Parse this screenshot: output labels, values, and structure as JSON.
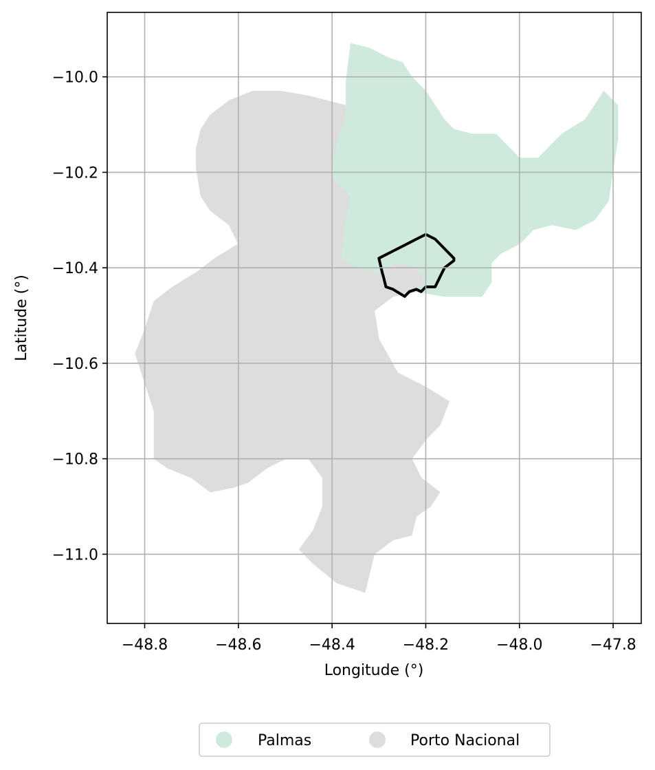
{
  "map": {
    "xlabel": "Longitude (°)",
    "ylabel": "Latitude (°)",
    "xlim": [
      -48.88,
      -47.74
    ],
    "ylim": [
      -11.145,
      -9.865
    ],
    "x_ticks": [
      -48.8,
      -48.6,
      -48.4,
      -48.2,
      -48.0,
      -47.8
    ],
    "x_tick_labels": [
      "−48.8",
      "−48.6",
      "−48.4",
      "−48.2",
      "−48.0",
      "−47.8"
    ],
    "y_ticks": [
      -10.0,
      -10.2,
      -10.4,
      -10.6,
      -10.8,
      -11.0
    ],
    "y_tick_labels": [
      "−10.0",
      "−10.2",
      "−10.4",
      "−10.6",
      "−10.8",
      "−11.0"
    ],
    "grid": true,
    "legend_position": "below plot, centered",
    "colors": {
      "palmas": "#cfeadd",
      "porto_nacional": "#dddddd",
      "outline": "#000000"
    },
    "regions": [
      {
        "name": "Porto Nacional",
        "color": "#dddddd",
        "coords": [
          [
            -48.37,
            -10.06
          ],
          [
            -48.45,
            -10.04
          ],
          [
            -48.51,
            -10.03
          ],
          [
            -48.57,
            -10.03
          ],
          [
            -48.62,
            -10.05
          ],
          [
            -48.66,
            -10.08
          ],
          [
            -48.68,
            -10.11
          ],
          [
            -48.69,
            -10.15
          ],
          [
            -48.69,
            -10.19
          ],
          [
            -48.68,
            -10.25
          ],
          [
            -48.66,
            -10.28
          ],
          [
            -48.62,
            -10.31
          ],
          [
            -48.6,
            -10.35
          ],
          [
            -48.65,
            -10.38
          ],
          [
            -48.69,
            -10.41
          ],
          [
            -48.74,
            -10.44
          ],
          [
            -48.78,
            -10.47
          ],
          [
            -48.8,
            -10.53
          ],
          [
            -48.82,
            -10.58
          ],
          [
            -48.8,
            -10.64
          ],
          [
            -48.78,
            -10.7
          ],
          [
            -48.78,
            -10.76
          ],
          [
            -48.78,
            -10.8
          ],
          [
            -48.75,
            -10.82
          ],
          [
            -48.7,
            -10.84
          ],
          [
            -48.66,
            -10.87
          ],
          [
            -48.61,
            -10.86
          ],
          [
            -48.58,
            -10.85
          ],
          [
            -48.54,
            -10.82
          ],
          [
            -48.5,
            -10.8
          ],
          [
            -48.45,
            -10.8
          ],
          [
            -48.42,
            -10.84
          ],
          [
            -48.42,
            -10.9
          ],
          [
            -48.44,
            -10.95
          ],
          [
            -48.47,
            -10.99
          ],
          [
            -48.44,
            -11.02
          ],
          [
            -48.39,
            -11.06
          ],
          [
            -48.33,
            -11.08
          ],
          [
            -48.31,
            -11.0
          ],
          [
            -48.27,
            -10.97
          ],
          [
            -48.23,
            -10.96
          ],
          [
            -48.22,
            -10.92
          ],
          [
            -48.19,
            -10.9
          ],
          [
            -48.17,
            -10.87
          ],
          [
            -48.21,
            -10.84
          ],
          [
            -48.23,
            -10.8
          ],
          [
            -48.2,
            -10.76
          ],
          [
            -48.17,
            -10.73
          ],
          [
            -48.15,
            -10.68
          ],
          [
            -48.2,
            -10.65
          ],
          [
            -48.26,
            -10.62
          ],
          [
            -48.3,
            -10.55
          ],
          [
            -48.31,
            -10.49
          ],
          [
            -48.27,
            -10.46
          ],
          [
            -48.22,
            -10.45
          ],
          [
            -48.2,
            -10.43
          ],
          [
            -48.22,
            -10.4
          ],
          [
            -48.26,
            -10.39
          ],
          [
            -48.3,
            -10.41
          ],
          [
            -48.35,
            -10.4
          ],
          [
            -48.38,
            -10.38
          ],
          [
            -48.37,
            -10.3
          ],
          [
            -48.36,
            -10.25
          ],
          [
            -48.4,
            -10.21
          ],
          [
            -48.38,
            -10.14
          ],
          [
            -48.36,
            -10.09
          ]
        ]
      },
      {
        "name": "Palmas",
        "color": "#cfeadd",
        "coords": [
          [
            -48.36,
            -9.93
          ],
          [
            -48.32,
            -9.94
          ],
          [
            -48.28,
            -9.96
          ],
          [
            -48.25,
            -9.97
          ],
          [
            -48.23,
            -10.0
          ],
          [
            -48.2,
            -10.03
          ],
          [
            -48.18,
            -10.06
          ],
          [
            -48.16,
            -10.09
          ],
          [
            -48.14,
            -10.11
          ],
          [
            -48.1,
            -10.12
          ],
          [
            -48.05,
            -10.12
          ],
          [
            -48.0,
            -10.17
          ],
          [
            -47.96,
            -10.17
          ],
          [
            -47.91,
            -10.12
          ],
          [
            -47.86,
            -10.09
          ],
          [
            -47.82,
            -10.03
          ],
          [
            -47.79,
            -10.06
          ],
          [
            -47.79,
            -10.13
          ],
          [
            -47.8,
            -10.19
          ],
          [
            -47.81,
            -10.26
          ],
          [
            -47.84,
            -10.3
          ],
          [
            -47.88,
            -10.32
          ],
          [
            -47.93,
            -10.31
          ],
          [
            -47.97,
            -10.32
          ],
          [
            -48.0,
            -10.35
          ],
          [
            -48.04,
            -10.37
          ],
          [
            -48.06,
            -10.39
          ],
          [
            -48.06,
            -10.43
          ],
          [
            -48.08,
            -10.46
          ],
          [
            -48.16,
            -10.46
          ],
          [
            -48.22,
            -10.45
          ],
          [
            -48.2,
            -10.43
          ],
          [
            -48.22,
            -10.4
          ],
          [
            -48.26,
            -10.39
          ],
          [
            -48.3,
            -10.41
          ],
          [
            -48.35,
            -10.4
          ],
          [
            -48.38,
            -10.38
          ],
          [
            -48.37,
            -10.3
          ],
          [
            -48.36,
            -10.25
          ],
          [
            -48.4,
            -10.21
          ],
          [
            -48.39,
            -10.14
          ],
          [
            -48.37,
            -10.08
          ],
          [
            -48.37,
            -10.01
          ]
        ]
      }
    ],
    "outline": {
      "name": "highlighted boundary",
      "color": "#000000",
      "coords": [
        [
          -48.2,
          -10.33
        ],
        [
          -48.18,
          -10.34
        ],
        [
          -48.16,
          -10.36
        ],
        [
          -48.14,
          -10.38
        ],
        [
          -48.14,
          -10.385
        ],
        [
          -48.16,
          -10.4
        ],
        [
          -48.17,
          -10.42
        ],
        [
          -48.18,
          -10.44
        ],
        [
          -48.2,
          -10.44
        ],
        [
          -48.21,
          -10.45
        ],
        [
          -48.22,
          -10.445
        ],
        [
          -48.235,
          -10.45
        ],
        [
          -48.245,
          -10.46
        ],
        [
          -48.27,
          -10.445
        ],
        [
          -48.285,
          -10.44
        ],
        [
          -48.29,
          -10.42
        ],
        [
          -48.293,
          -10.41
        ],
        [
          -48.3,
          -10.38
        ],
        [
          -48.27,
          -10.365
        ],
        [
          -48.24,
          -10.35
        ],
        [
          -48.22,
          -10.34
        ],
        [
          -48.2,
          -10.33
        ]
      ]
    },
    "legend": [
      {
        "label": "Palmas",
        "color": "#cfeadd"
      },
      {
        "label": "Porto Nacional",
        "color": "#dddddd"
      }
    ]
  }
}
